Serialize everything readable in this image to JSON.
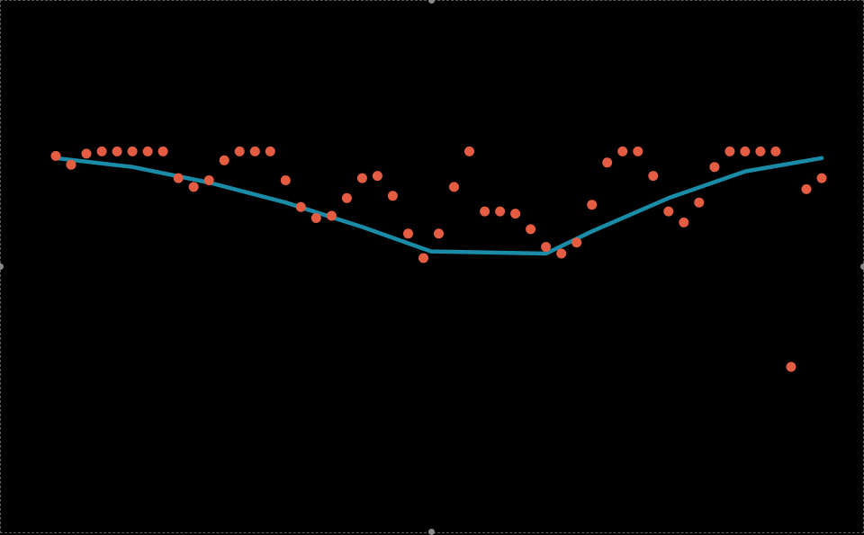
{
  "canvas": {
    "background": "#000000",
    "selection_frame": true
  },
  "chart_data": {
    "type": "scatter",
    "title": "",
    "xlabel": "",
    "ylabel": "",
    "grid": false,
    "xlim": [
      0,
      50
    ],
    "ylim": [
      0,
      1
    ],
    "series": [
      {
        "kind": "points",
        "color": "#e45d42",
        "x": [
          0,
          1,
          2,
          3,
          4,
          5,
          6,
          7,
          8,
          9,
          10,
          11,
          12,
          13,
          14,
          15,
          16,
          17,
          18,
          19,
          20,
          21,
          22,
          23,
          24,
          25,
          26,
          27,
          28,
          29,
          30,
          31,
          32,
          33,
          34,
          35,
          36,
          37,
          38,
          39,
          40,
          41,
          42,
          43,
          44,
          45,
          46,
          47,
          48,
          49,
          50
        ],
        "y": [
          0.95,
          0.91,
          0.96,
          0.97,
          0.97,
          0.97,
          0.97,
          0.97,
          0.85,
          0.81,
          0.84,
          0.93,
          0.97,
          0.97,
          0.97,
          0.84,
          0.72,
          0.67,
          0.68,
          0.76,
          0.85,
          0.86,
          0.77,
          0.6,
          0.49,
          0.6,
          0.81,
          0.97,
          0.7,
          0.7,
          0.69,
          0.62,
          0.54,
          0.51,
          0.56,
          0.73,
          0.92,
          0.97,
          0.97,
          0.86,
          0.7,
          0.65,
          0.74,
          0.9,
          0.97,
          0.97,
          0.97,
          0.97,
          0.0,
          0.8,
          0.85
        ]
      },
      {
        "kind": "line",
        "color": "#1a8ca8",
        "x": [
          0,
          5,
          10,
          15,
          20,
          24.5,
          32,
          35,
          40,
          45,
          50
        ],
        "y": [
          0.94,
          0.9,
          0.83,
          0.74,
          0.63,
          0.52,
          0.51,
          0.61,
          0.76,
          0.88,
          0.94
        ]
      }
    ]
  }
}
